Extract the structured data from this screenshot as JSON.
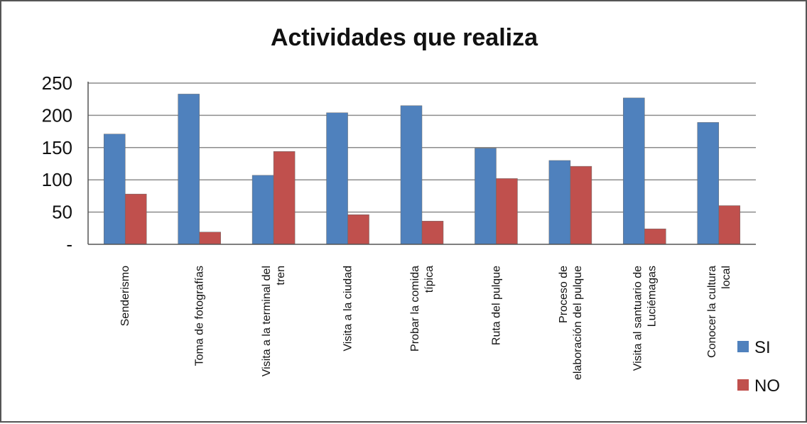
{
  "chart_data": {
    "type": "bar",
    "title": "Actividades que realiza",
    "categories": [
      [
        "Senderismo"
      ],
      [
        "Toma de fotografías"
      ],
      [
        "Visita a la terminal del",
        "tren"
      ],
      [
        "Visita a la ciudad"
      ],
      [
        "Probar la comida",
        "típica"
      ],
      [
        "Ruta del pulque"
      ],
      [
        "Proceso de",
        "elaboración del pulque"
      ],
      [
        "Visita al santuario de",
        "Luciémagas"
      ],
      [
        "Conocer la cultura",
        "local"
      ]
    ],
    "series": [
      {
        "name": "SI",
        "color": "#4f81bd",
        "values": [
          171,
          233,
          107,
          204,
          215,
          149,
          130,
          227,
          189
        ]
      },
      {
        "name": "NO",
        "color": "#c0504d",
        "values": [
          78,
          19,
          144,
          46,
          36,
          102,
          121,
          24,
          60
        ]
      }
    ],
    "yticks": [
      {
        "value": 0,
        "label": "-"
      },
      {
        "value": 50,
        "label": "50"
      },
      {
        "value": 100,
        "label": "100"
      },
      {
        "value": 150,
        "label": "150"
      },
      {
        "value": 200,
        "label": "200"
      },
      {
        "value": 250,
        "label": "250"
      }
    ],
    "ylim": [
      0,
      250
    ],
    "grid": true,
    "legend": "right"
  }
}
